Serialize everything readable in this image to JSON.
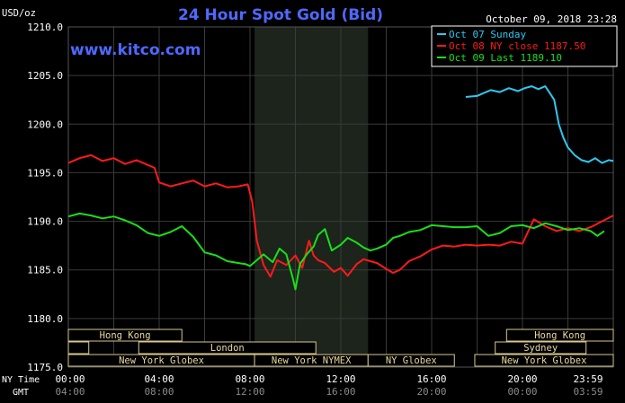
{
  "header": {
    "unit": "USD/oz",
    "title": "24 Hour Spot Gold (Bid)",
    "datetime": "October 09, 2018 23:28",
    "site": "www.kitco.com"
  },
  "colors": {
    "background": "#000000",
    "grid": "#3a3a3a",
    "shade": "#1c241c",
    "title": "#4f68ff",
    "axis_text": "#ffffff",
    "gmt_text": "#8a8a8a",
    "session_fill": "#000000",
    "session_border": "#d8c890",
    "session_text": "#e8d9a0"
  },
  "chart_data": {
    "type": "line",
    "title": "24 Hour Spot Gold (Bid)",
    "ylabel": "USD/oz",
    "ylim": [
      1175,
      1210
    ],
    "xlim": [
      0,
      24
    ],
    "y_ticks": [
      "1175.0",
      "1180.0",
      "1185.0",
      "1190.0",
      "1195.0",
      "1200.0",
      "1205.0",
      "1210.0"
    ],
    "y_tick_values": [
      1175,
      1180,
      1185,
      1190,
      1195,
      1200,
      1205,
      1210
    ],
    "x_ticks_ny": [
      "00:00",
      "04:00",
      "08:00",
      "12:00",
      "16:00",
      "20:00",
      "23:59"
    ],
    "x_ticks_gmt": [
      "04:00",
      "08:00",
      "12:00",
      "16:00",
      "20:00",
      "00:00",
      "03:59"
    ],
    "x_tick_values": [
      0,
      4,
      8,
      12,
      16,
      20,
      24
    ],
    "x_row_labels": {
      "ny": "NY Time",
      "gmt": "GMT"
    },
    "shaded_range": [
      8.2,
      13.2
    ],
    "grid": true,
    "legend_position": "top-right",
    "series": [
      {
        "name": "Oct 07 Sunday",
        "color": "#2fc8f0",
        "x": [
          17.5,
          18.0,
          18.3,
          18.6,
          19.0,
          19.4,
          19.8,
          20.1,
          20.4,
          20.7,
          21.0,
          21.2,
          21.4,
          21.6,
          21.8,
          22.0,
          22.3,
          22.6,
          22.9,
          23.2,
          23.5,
          23.8,
          24.0
        ],
        "values": [
          1202.8,
          1202.9,
          1203.2,
          1203.5,
          1203.3,
          1203.7,
          1203.4,
          1203.7,
          1203.9,
          1203.6,
          1203.9,
          1203.2,
          1202.5,
          1200.0,
          1198.6,
          1197.6,
          1196.8,
          1196.3,
          1196.1,
          1196.5,
          1196.0,
          1196.3,
          1196.2
        ]
      },
      {
        "name": "Oct 08 NY close 1187.50",
        "color": "#ff1a1a",
        "x": [
          0,
          0.5,
          1.0,
          1.5,
          2.0,
          2.5,
          3.0,
          3.5,
          3.8,
          4.0,
          4.5,
          5.0,
          5.5,
          6.0,
          6.5,
          7.0,
          7.5,
          7.9,
          8.1,
          8.3,
          8.6,
          8.9,
          9.2,
          9.6,
          10.0,
          10.3,
          10.6,
          10.8,
          11.0,
          11.3,
          11.7,
          12.0,
          12.3,
          12.7,
          13.0,
          13.3,
          13.6,
          14.0,
          14.3,
          14.6,
          15.0,
          15.5,
          16.0,
          16.5,
          17.0,
          17.5,
          18.0,
          18.5,
          19.0,
          19.5,
          20.0,
          20.5,
          21.0,
          21.5,
          22.0,
          22.5,
          23.0,
          23.5,
          24.0
        ],
        "values": [
          1196.0,
          1196.5,
          1196.8,
          1196.2,
          1196.5,
          1195.9,
          1196.3,
          1195.8,
          1195.5,
          1194.0,
          1193.6,
          1193.9,
          1194.2,
          1193.6,
          1193.9,
          1193.5,
          1193.6,
          1193.8,
          1192.0,
          1188.0,
          1185.5,
          1184.3,
          1186.0,
          1185.5,
          1186.5,
          1185.2,
          1188.0,
          1186.5,
          1186.0,
          1185.7,
          1184.8,
          1185.2,
          1184.4,
          1185.6,
          1186.1,
          1185.9,
          1185.7,
          1185.1,
          1184.7,
          1185.0,
          1185.9,
          1186.4,
          1187.1,
          1187.5,
          1187.4,
          1187.6,
          1187.5,
          1187.6,
          1187.5,
          1187.9,
          1187.7,
          1190.2,
          1189.5,
          1189.0,
          1189.3,
          1189.0,
          1189.4,
          1190.0,
          1190.6
        ]
      },
      {
        "name": "Oct 09 Last 1189.10",
        "color": "#18e018",
        "x": [
          0,
          0.5,
          1.0,
          1.5,
          2.0,
          2.5,
          3.0,
          3.5,
          4.0,
          4.5,
          5.0,
          5.5,
          6.0,
          6.5,
          7.0,
          7.5,
          7.8,
          8.0,
          8.3,
          8.6,
          9.0,
          9.3,
          9.6,
          9.9,
          10.0,
          10.2,
          10.5,
          10.8,
          11.0,
          11.3,
          11.6,
          12.0,
          12.3,
          12.7,
          13.0,
          13.3,
          13.6,
          14.0,
          14.3,
          14.6,
          15.0,
          15.5,
          16.0,
          16.5,
          17.0,
          17.5,
          18.0,
          18.5,
          19.0,
          19.5,
          20.0,
          20.5,
          21.0,
          21.5,
          22.0,
          22.5,
          23.0,
          23.3,
          23.6
        ],
        "values": [
          1190.5,
          1190.8,
          1190.6,
          1190.3,
          1190.5,
          1190.1,
          1189.6,
          1188.8,
          1188.5,
          1188.9,
          1189.5,
          1188.4,
          1186.8,
          1186.5,
          1185.9,
          1185.7,
          1185.6,
          1185.4,
          1186.0,
          1186.6,
          1185.8,
          1187.2,
          1186.6,
          1184.0,
          1183.0,
          1185.6,
          1186.6,
          1187.4,
          1188.6,
          1189.2,
          1187.0,
          1187.6,
          1188.3,
          1187.8,
          1187.3,
          1187.0,
          1187.2,
          1187.6,
          1188.3,
          1188.5,
          1188.9,
          1189.1,
          1189.6,
          1189.5,
          1189.4,
          1189.4,
          1189.5,
          1188.5,
          1188.8,
          1189.5,
          1189.6,
          1189.3,
          1189.8,
          1189.5,
          1189.1,
          1189.3,
          1189.0,
          1188.5,
          1189.0
        ]
      }
    ],
    "sessions": [
      {
        "label": "Hong Kong",
        "row": 0,
        "start": 0,
        "end": 5.0
      },
      {
        "label": "Hong Kong",
        "row": 0,
        "start": 19.3,
        "end": 24
      },
      {
        "label": "",
        "row": 1,
        "start": 0,
        "end": 0.9
      },
      {
        "label": "London",
        "row": 1,
        "start": 3.1,
        "end": 10.9
      },
      {
        "label": "Sydney",
        "row": 1,
        "start": 18.8,
        "end": 22.8
      },
      {
        "label": "New York Globex",
        "row": 2,
        "start": 0,
        "end": 8.2
      },
      {
        "label": "New York NYMEX",
        "row": 2,
        "start": 8.2,
        "end": 13.2
      },
      {
        "label": "NY Globex",
        "row": 2,
        "start": 13.2,
        "end": 17.0
      },
      {
        "label": "New York Globex",
        "row": 2,
        "start": 17.9,
        "end": 24
      }
    ]
  }
}
